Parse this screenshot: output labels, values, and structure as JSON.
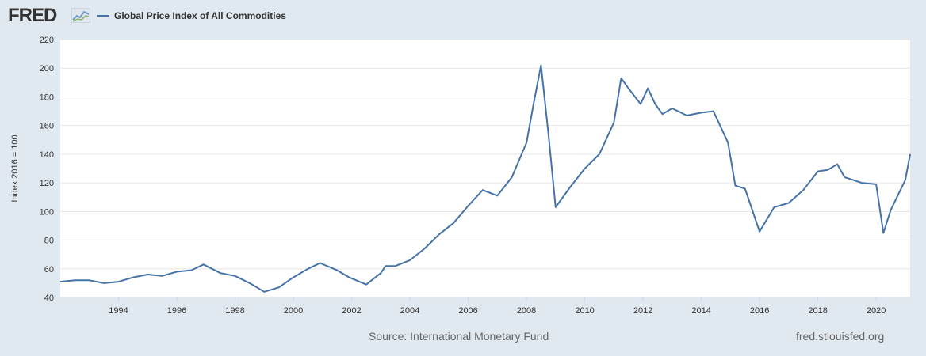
{
  "header": {
    "logo_text": "FRED",
    "logo_graph_icon": "fred-line-graph-icon"
  },
  "colors": {
    "page_background": "#e1e9f0",
    "plot_background": "#ffffff",
    "series_line": "#4572a7",
    "grid": "#e6e6e6",
    "text": "#333333",
    "footer_text": "#666666"
  },
  "chart_data": {
    "type": "line",
    "title": "",
    "ylabel": "Index 2016 = 100",
    "xlabel": "",
    "ylim": [
      40,
      220
    ],
    "xlim": [
      "1992-01",
      "2021-03"
    ],
    "y_ticks": [
      40,
      60,
      80,
      100,
      120,
      140,
      160,
      180,
      200,
      220
    ],
    "x_ticks": [
      "1994",
      "1996",
      "1998",
      "2000",
      "2002",
      "2004",
      "2006",
      "2008",
      "2010",
      "2012",
      "2014",
      "2016",
      "2018",
      "2020"
    ],
    "grid": true,
    "legend": "top-left",
    "series": [
      {
        "name": "Global Price Index of All Commodities",
        "x": [
          "1992-01",
          "1992-07",
          "1993-01",
          "1993-07",
          "1994-01",
          "1994-07",
          "1995-01",
          "1995-07",
          "1996-01",
          "1996-07",
          "1996-12",
          "1997-07",
          "1998-01",
          "1998-07",
          "1999-01",
          "1999-07",
          "2000-01",
          "2000-07",
          "2000-12",
          "2001-07",
          "2001-12",
          "2002-07",
          "2003-01",
          "2003-03",
          "2003-07",
          "2004-01",
          "2004-07",
          "2005-01",
          "2005-07",
          "2006-01",
          "2006-07",
          "2007-01",
          "2007-07",
          "2008-01",
          "2008-04",
          "2008-07",
          "2008-10",
          "2009-01",
          "2009-07",
          "2010-01",
          "2010-07",
          "2011-01",
          "2011-04",
          "2011-07",
          "2011-12",
          "2012-03",
          "2012-06",
          "2012-09",
          "2013-01",
          "2013-07",
          "2014-01",
          "2014-06",
          "2014-12",
          "2015-03",
          "2015-07",
          "2016-01",
          "2016-07",
          "2017-01",
          "2017-07",
          "2018-01",
          "2018-05",
          "2018-09",
          "2018-12",
          "2019-07",
          "2020-01",
          "2020-04",
          "2020-07",
          "2021-01",
          "2021-03"
        ],
        "values": [
          51,
          52,
          52,
          50,
          51,
          54,
          56,
          55,
          58,
          59,
          63,
          57,
          55,
          50,
          44,
          47,
          54,
          60,
          64,
          59,
          54,
          49,
          57,
          62,
          62,
          66,
          74,
          84,
          92,
          104,
          115,
          111,
          124,
          148,
          176,
          202,
          155,
          103,
          117,
          130,
          140,
          162,
          193,
          186,
          175,
          186,
          175,
          168,
          172,
          167,
          169,
          170,
          148,
          118,
          116,
          86,
          103,
          106,
          115,
          128,
          129,
          133,
          124,
          120,
          119,
          85,
          101,
          122,
          140
        ]
      }
    ]
  },
  "footer": {
    "source": "Source: International Monetary Fund",
    "site": "fred.stlouisfed.org"
  }
}
